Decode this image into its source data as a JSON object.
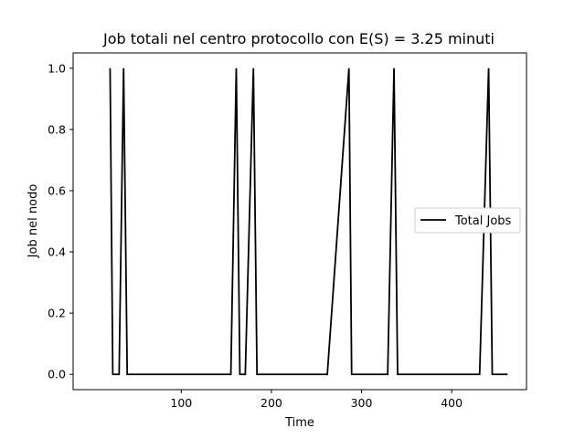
{
  "chart_data": {
    "type": "line",
    "title": "Job totali nel centro protocollo con E(S) = 3.25 minuti",
    "xlabel": "Time",
    "ylabel": "Job nel nodo",
    "xlim": [
      -20,
      483
    ],
    "ylim": [
      -0.05,
      1.05
    ],
    "xticks": [
      100,
      200,
      300,
      400
    ],
    "yticks": [
      0.0,
      0.2,
      0.4,
      0.6,
      0.8,
      1.0
    ],
    "xtick_labels": [
      "100",
      "200",
      "300",
      "400"
    ],
    "ytick_labels": [
      "0.0",
      "0.2",
      "0.4",
      "0.6",
      "0.8",
      "1.0"
    ],
    "grid": false,
    "legend_position": "center-right",
    "series": [
      {
        "name": "Total Jobs",
        "color": "#000000",
        "x": [
          21,
          24,
          31,
          36,
          40,
          155,
          161,
          165,
          171,
          180,
          184,
          262,
          286,
          289,
          329,
          336,
          340,
          431,
          441,
          445,
          462
        ],
        "y": [
          1,
          0,
          0,
          1,
          0,
          0,
          1,
          0,
          0,
          1,
          0,
          0,
          1,
          0,
          0,
          1,
          0,
          0,
          1,
          0,
          0
        ]
      }
    ]
  }
}
